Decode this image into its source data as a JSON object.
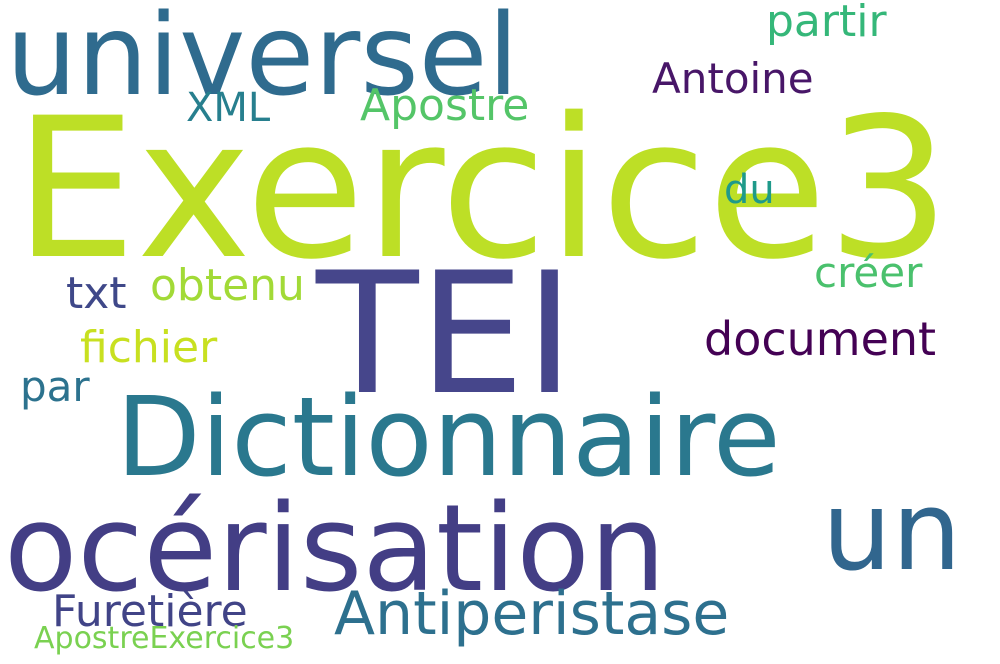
{
  "background": "#ffffff",
  "words": [
    {
      "text": "Exercice3",
      "color": "#bddf26"
    },
    {
      "text": "TEI",
      "color": "#46468b"
    },
    {
      "text": "universel",
      "color": "#2f6b8e"
    },
    {
      "text": "Dictionnaire",
      "color": "#2a788e"
    },
    {
      "text": "océrisation",
      "color": "#433e85"
    },
    {
      "text": "un",
      "color": "#31668e"
    },
    {
      "text": "Antiperistase",
      "color": "#2d708e"
    },
    {
      "text": "partir",
      "color": "#35b779"
    },
    {
      "text": "Antoine",
      "color": "#481668"
    },
    {
      "text": "Apostre",
      "color": "#54c568"
    },
    {
      "text": "XML",
      "color": "#277f8e"
    },
    {
      "text": "du",
      "color": "#1f9a8a"
    },
    {
      "text": "créer",
      "color": "#4ac16d"
    },
    {
      "text": "obtenu",
      "color": "#a2da37"
    },
    {
      "text": "txt",
      "color": "#3f4889"
    },
    {
      "text": "document",
      "color": "#440154"
    },
    {
      "text": "fichier",
      "color": "#c8e020"
    },
    {
      "text": "par",
      "color": "#2c728e"
    },
    {
      "text": "Furetière",
      "color": "#414487"
    },
    {
      "text": "ApostreExercice3",
      "color": "#7ad151"
    }
  ]
}
